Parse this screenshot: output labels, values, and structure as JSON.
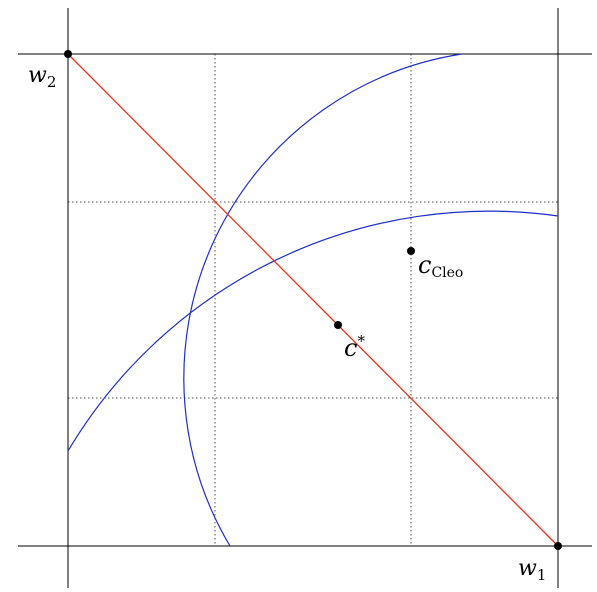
{
  "diagram": {
    "colors": {
      "axes": "#000000",
      "grid": "#555555",
      "diagonal": "#e8321e",
      "arcs": "#1f2fc8",
      "points": "#000000",
      "background": "#ffffff"
    },
    "labels": {
      "w1": {
        "base": "w",
        "sub": "1"
      },
      "w2": {
        "base": "w",
        "sub": "2"
      },
      "c_cleo": {
        "base": "c",
        "sub": "Cleo"
      },
      "c_star": {
        "base": "c",
        "sup": "*"
      }
    }
  }
}
